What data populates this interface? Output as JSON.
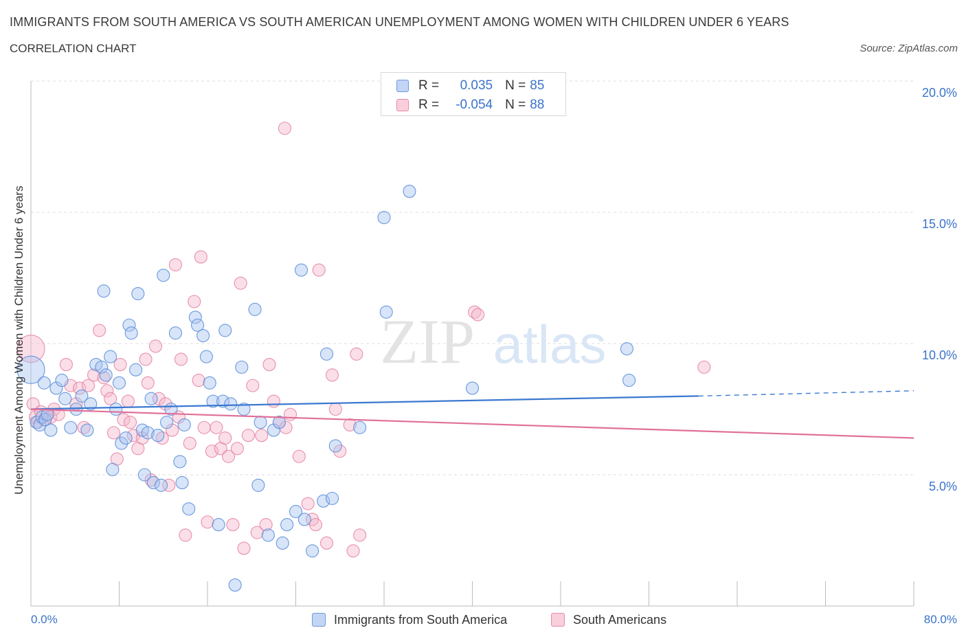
{
  "title": "IMMIGRANTS FROM SOUTH AMERICA VS SOUTH AMERICAN UNEMPLOYMENT AMONG WOMEN WITH CHILDREN UNDER 6 YEARS",
  "subtitle": "CORRELATION CHART",
  "source": "Source: ZipAtlas.com",
  "watermark": {
    "zip": "ZIP",
    "atlas": "atlas"
  },
  "legend": {
    "rows": [
      {
        "r_label": "R =",
        "r_value": "0.035",
        "n_label": "N =",
        "n_value": "85",
        "color": "#a8c4f0"
      },
      {
        "r_label": "R =",
        "r_value": "-0.054",
        "n_label": "N =",
        "n_value": "88",
        "color": "#f5b8cb"
      }
    ]
  },
  "bottom_legend": [
    {
      "label": "Immigrants from South America",
      "color": "#a8c4f0"
    },
    {
      "label": "South Americans",
      "color": "#f5b8cb"
    }
  ],
  "chart_data": {
    "type": "scatter",
    "title": "IMMIGRANTS FROM SOUTH AMERICA VS SOUTH AMERICAN UNEMPLOYMENT AMONG WOMEN WITH CHILDREN UNDER 6 YEARS",
    "xlabel": "",
    "ylabel": "Unemployment Among Women with Children Under 6 years",
    "xlim": [
      0,
      80
    ],
    "ylim": [
      0,
      20
    ],
    "x_tick_labels": [
      "0.0%",
      "80.0%"
    ],
    "y_ticks": [
      5,
      10,
      15,
      20
    ],
    "y_tick_labels": [
      "5.0%",
      "10.0%",
      "15.0%",
      "20.0%"
    ],
    "grid": true,
    "legend_position": "top-center",
    "series": [
      {
        "name": "Immigrants from South America",
        "color": "#5b8fd9",
        "fill": "#a8c4f0",
        "trend": {
          "x": [
            0,
            60.5
          ],
          "y": [
            7.5,
            8.0
          ],
          "dashed_to": [
            80,
            8.2
          ],
          "color": "#3a78d0"
        },
        "points": [
          [
            0,
            9.0
          ],
          [
            0.5,
            7.0
          ],
          [
            0.8,
            6.9
          ],
          [
            1.0,
            7.2
          ],
          [
            1.2,
            8.5
          ],
          [
            1.3,
            7.1
          ],
          [
            1.5,
            7.3
          ],
          [
            1.8,
            6.7
          ],
          [
            2.3,
            8.3
          ],
          [
            2.8,
            8.6
          ],
          [
            3.1,
            7.9
          ],
          [
            3.6,
            6.8
          ],
          [
            4.1,
            7.5
          ],
          [
            4.6,
            8.0
          ],
          [
            5.1,
            6.7
          ],
          [
            5.4,
            7.7
          ],
          [
            5.9,
            9.2
          ],
          [
            6.4,
            9.1
          ],
          [
            6.6,
            12.0
          ],
          [
            6.8,
            8.8
          ],
          [
            7.2,
            9.5
          ],
          [
            7.4,
            5.2
          ],
          [
            7.7,
            7.5
          ],
          [
            8.0,
            8.5
          ],
          [
            8.2,
            6.2
          ],
          [
            8.6,
            6.4
          ],
          [
            8.9,
            10.7
          ],
          [
            9.1,
            10.4
          ],
          [
            9.5,
            9.0
          ],
          [
            9.7,
            11.9
          ],
          [
            10.1,
            6.7
          ],
          [
            10.3,
            5.0
          ],
          [
            10.6,
            6.6
          ],
          [
            10.9,
            7.9
          ],
          [
            11.1,
            4.7
          ],
          [
            11.5,
            6.5
          ],
          [
            11.8,
            4.6
          ],
          [
            12.0,
            12.6
          ],
          [
            12.3,
            7.0
          ],
          [
            12.7,
            7.5
          ],
          [
            13.1,
            10.4
          ],
          [
            13.5,
            5.5
          ],
          [
            13.7,
            4.7
          ],
          [
            13.9,
            6.9
          ],
          [
            14.3,
            3.7
          ],
          [
            14.9,
            11.0
          ],
          [
            15.1,
            10.7
          ],
          [
            15.6,
            10.3
          ],
          [
            15.9,
            9.5
          ],
          [
            16.2,
            8.5
          ],
          [
            16.5,
            7.8
          ],
          [
            17.0,
            3.1
          ],
          [
            17.4,
            7.8
          ],
          [
            17.6,
            10.5
          ],
          [
            18.1,
            7.7
          ],
          [
            18.5,
            0.8
          ],
          [
            19.1,
            9.1
          ],
          [
            19.3,
            7.5
          ],
          [
            20.3,
            11.3
          ],
          [
            20.6,
            4.6
          ],
          [
            20.8,
            7.0
          ],
          [
            21.5,
            2.7
          ],
          [
            22.0,
            6.7
          ],
          [
            22.8,
            2.4
          ],
          [
            22.5,
            7.0
          ],
          [
            23.2,
            3.1
          ],
          [
            24.0,
            3.6
          ],
          [
            24.5,
            12.8
          ],
          [
            24.8,
            3.3
          ],
          [
            25.5,
            2.1
          ],
          [
            26.5,
            4.0
          ],
          [
            26.8,
            9.6
          ],
          [
            27.3,
            4.1
          ],
          [
            27.6,
            6.1
          ],
          [
            29.8,
            6.8
          ],
          [
            32.0,
            14.8
          ],
          [
            32.2,
            11.2
          ],
          [
            34.3,
            15.8
          ],
          [
            40.0,
            8.3
          ],
          [
            54.0,
            9.8
          ],
          [
            54.2,
            8.6
          ]
        ]
      },
      {
        "name": "South Americans",
        "color": "#e784a3",
        "fill": "#f5b8cb",
        "trend": {
          "x": [
            0,
            80
          ],
          "y": [
            7.5,
            6.4
          ],
          "color": "#e0709a"
        },
        "points": [
          [
            0,
            9.8
          ],
          [
            0.2,
            7.7
          ],
          [
            0.4,
            7.2
          ],
          [
            0.6,
            7.0
          ],
          [
            0.9,
            7.4
          ],
          [
            1.2,
            7.1
          ],
          [
            1.5,
            7.3
          ],
          [
            1.8,
            7.2
          ],
          [
            2.1,
            7.5
          ],
          [
            2.5,
            7.3
          ],
          [
            3.2,
            9.2
          ],
          [
            3.6,
            8.4
          ],
          [
            4.1,
            7.7
          ],
          [
            4.4,
            8.3
          ],
          [
            4.8,
            6.8
          ],
          [
            5.2,
            8.4
          ],
          [
            5.7,
            8.8
          ],
          [
            6.2,
            10.5
          ],
          [
            6.6,
            8.7
          ],
          [
            6.9,
            8.2
          ],
          [
            7.2,
            7.9
          ],
          [
            7.5,
            6.6
          ],
          [
            7.8,
            5.6
          ],
          [
            8.1,
            9.2
          ],
          [
            8.4,
            7.1
          ],
          [
            8.8,
            7.8
          ],
          [
            9.0,
            7.0
          ],
          [
            9.3,
            6.5
          ],
          [
            9.7,
            6.0
          ],
          [
            10.1,
            6.4
          ],
          [
            10.4,
            9.4
          ],
          [
            10.6,
            8.5
          ],
          [
            10.9,
            4.8
          ],
          [
            11.3,
            9.9
          ],
          [
            11.6,
            7.9
          ],
          [
            11.9,
            6.4
          ],
          [
            12.2,
            7.7
          ],
          [
            12.5,
            4.6
          ],
          [
            12.8,
            6.7
          ],
          [
            13.1,
            13.0
          ],
          [
            13.4,
            7.2
          ],
          [
            13.6,
            9.4
          ],
          [
            14.0,
            2.7
          ],
          [
            14.4,
            6.2
          ],
          [
            14.8,
            11.6
          ],
          [
            15.2,
            8.6
          ],
          [
            15.4,
            13.3
          ],
          [
            15.7,
            6.8
          ],
          [
            16.0,
            3.2
          ],
          [
            16.4,
            5.9
          ],
          [
            16.8,
            6.8
          ],
          [
            17.2,
            6.0
          ],
          [
            17.6,
            6.4
          ],
          [
            17.9,
            5.7
          ],
          [
            18.3,
            3.1
          ],
          [
            18.7,
            6.0
          ],
          [
            19.0,
            12.3
          ],
          [
            19.3,
            2.2
          ],
          [
            19.7,
            6.5
          ],
          [
            20.1,
            8.4
          ],
          [
            20.5,
            2.8
          ],
          [
            20.9,
            6.5
          ],
          [
            21.3,
            3.1
          ],
          [
            21.6,
            9.2
          ],
          [
            22.0,
            7.8
          ],
          [
            22.5,
            7.0
          ],
          [
            23.1,
            6.8
          ],
          [
            23.5,
            7.3
          ],
          [
            23.0,
            18.2
          ],
          [
            24.3,
            5.7
          ],
          [
            25.1,
            3.9
          ],
          [
            25.5,
            3.3
          ],
          [
            25.8,
            3.1
          ],
          [
            26.1,
            12.8
          ],
          [
            26.8,
            2.4
          ],
          [
            27.3,
            8.8
          ],
          [
            27.6,
            7.5
          ],
          [
            28.0,
            5.9
          ],
          [
            28.9,
            6.9
          ],
          [
            29.2,
            2.1
          ],
          [
            29.5,
            9.6
          ],
          [
            29.8,
            2.7
          ],
          [
            40.2,
            11.2
          ],
          [
            40.5,
            11.1
          ],
          [
            61.0,
            9.1
          ]
        ]
      }
    ]
  }
}
